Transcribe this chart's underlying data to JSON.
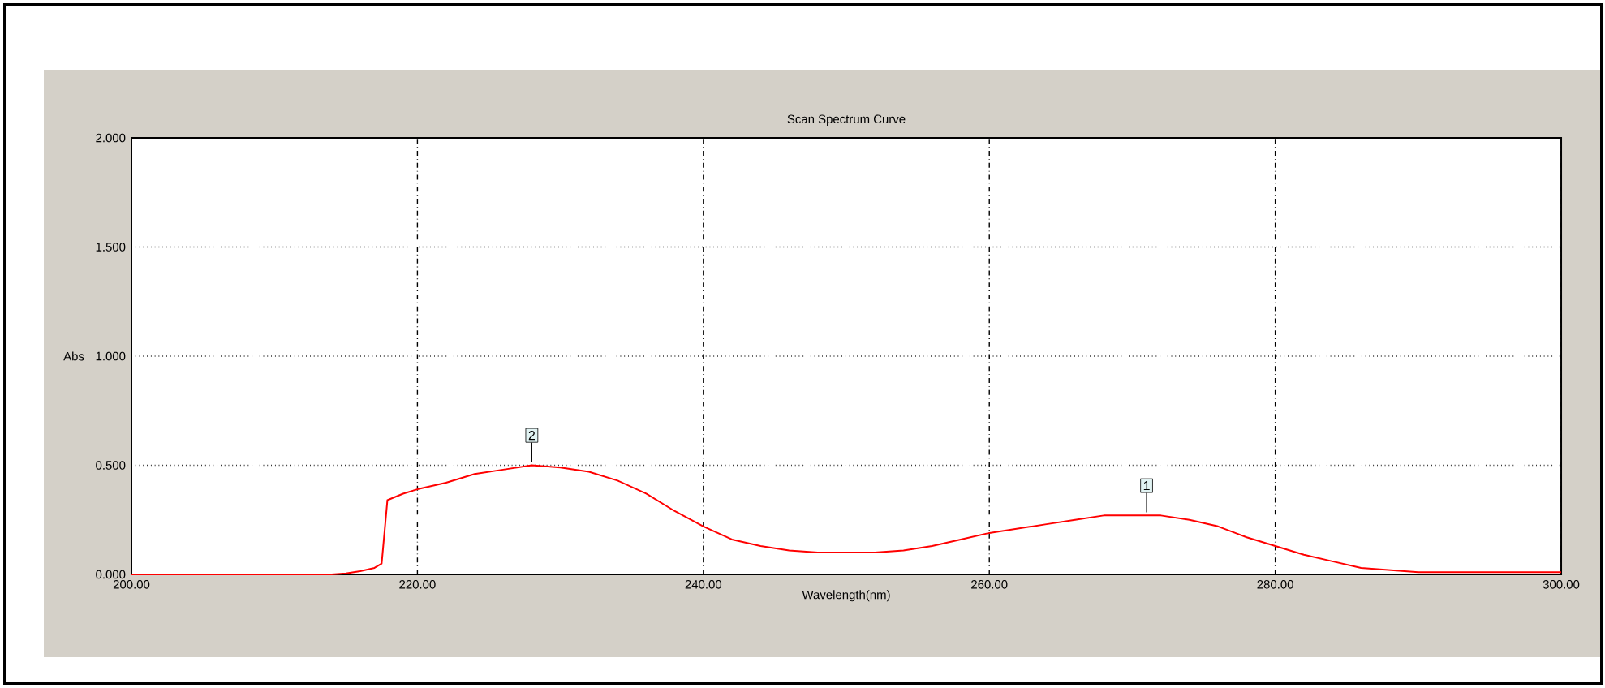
{
  "chart_data": {
    "type": "line",
    "title": "Scan Spectrum Curve",
    "xlabel": "Wavelength(nm)",
    "ylabel": "Abs",
    "x": [
      200,
      205,
      210,
      214,
      215,
      216,
      217,
      217.5,
      217.9,
      219,
      220,
      222,
      224,
      226,
      228,
      230,
      232,
      234,
      236,
      238,
      240,
      242,
      244,
      246,
      248,
      250,
      252,
      254,
      256,
      258,
      260,
      262,
      264,
      266,
      268,
      270,
      272,
      274,
      276,
      278,
      280,
      282,
      284,
      286,
      288,
      290,
      295,
      300
    ],
    "values": [
      0.0,
      0.0,
      0.0,
      0.0,
      0.005,
      0.015,
      0.03,
      0.05,
      0.34,
      0.37,
      0.39,
      0.42,
      0.46,
      0.48,
      0.5,
      0.49,
      0.47,
      0.43,
      0.37,
      0.29,
      0.22,
      0.16,
      0.13,
      0.11,
      0.1,
      0.1,
      0.1,
      0.11,
      0.13,
      0.16,
      0.19,
      0.21,
      0.23,
      0.25,
      0.27,
      0.27,
      0.27,
      0.25,
      0.22,
      0.17,
      0.13,
      0.09,
      0.06,
      0.03,
      0.02,
      0.01,
      0.01,
      0.01
    ],
    "color": "#ff0000",
    "xlim": [
      200,
      300
    ],
    "ylim": [
      0,
      2
    ],
    "xticks": [
      {
        "value": 200,
        "label": "200.00"
      },
      {
        "value": 220,
        "label": "220.00"
      },
      {
        "value": 240,
        "label": "240.00"
      },
      {
        "value": 260,
        "label": "260.00"
      },
      {
        "value": 280,
        "label": "280.00"
      },
      {
        "value": 300,
        "label": "300.00"
      }
    ],
    "yticks": [
      {
        "value": 0,
        "label": "0.000"
      },
      {
        "value": 0.5,
        "label": "0.500"
      },
      {
        "value": 1,
        "label": "1.000"
      },
      {
        "value": 1.5,
        "label": "1.500"
      },
      {
        "value": 2,
        "label": "2.000"
      }
    ],
    "grid": true,
    "annotations": [
      {
        "text": "2",
        "x": 228,
        "y": 0.5
      },
      {
        "text": "1",
        "x": 271,
        "y": 0.27
      }
    ]
  }
}
